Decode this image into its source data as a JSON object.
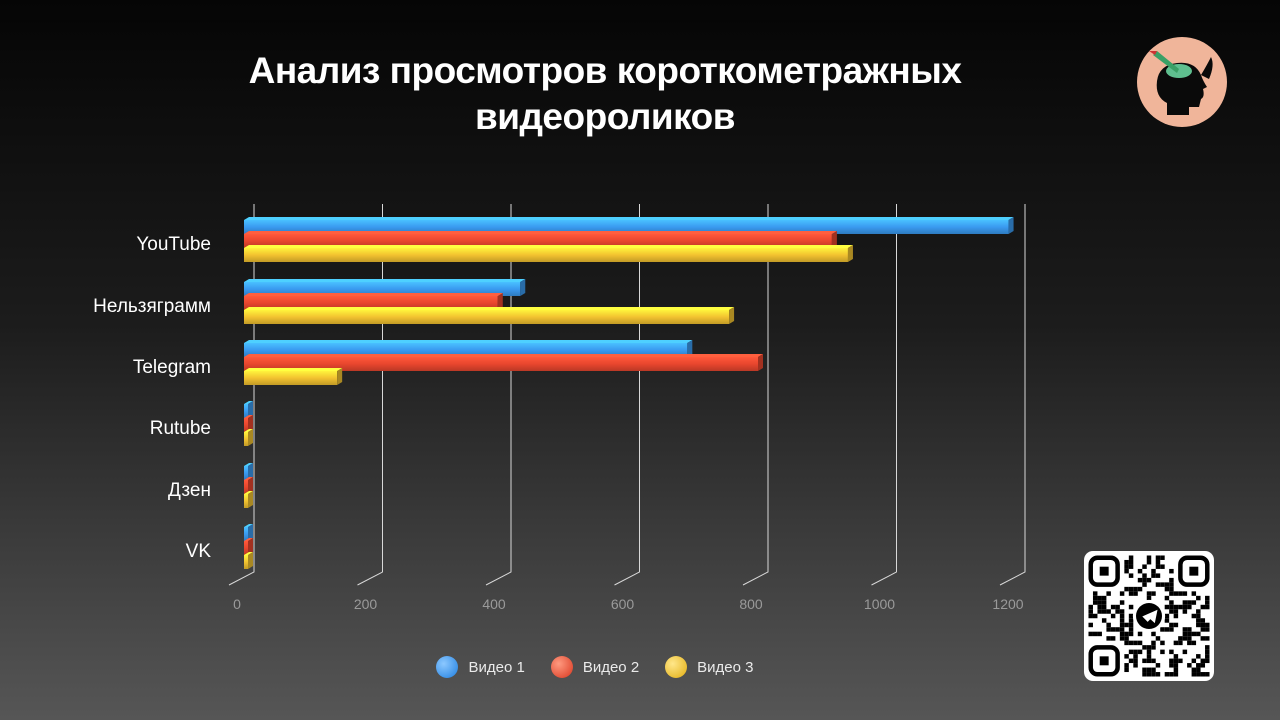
{
  "title_line1": "Анализ просмотров короткометражных",
  "title_line2": "видеороликов",
  "logo_icon": "head-with-pen-logo-icon",
  "qr_icon": "telegram-qr-code-icon",
  "colors": {
    "series1": "#3a9af0",
    "series2": "#e8462e",
    "series3": "#f2c230",
    "grid": "#d8d8d8",
    "tick": "#9a9a9a"
  },
  "chart_data": {
    "type": "bar",
    "orientation": "horizontal",
    "title": "Анализ просмотров короткометражных видеороликов",
    "categories": [
      "YouTube",
      "Нельзяграмм",
      "Telegram",
      "Rutube",
      "Дзен",
      "VK"
    ],
    "series": [
      {
        "name": "Видео 1",
        "values": [
          1190,
          430,
          690,
          5,
          2,
          5
        ]
      },
      {
        "name": "Видео 2",
        "values": [
          915,
          395,
          800,
          5,
          2,
          5
        ]
      },
      {
        "name": "Видео 3",
        "values": [
          940,
          755,
          145,
          5,
          2,
          5
        ]
      }
    ],
    "xticks": [
      "0",
      "200",
      "400",
      "600",
      "800",
      "1000",
      "1200"
    ],
    "xlim": [
      0,
      1200
    ],
    "grid": true,
    "legend": "bottom-center",
    "style": "3d"
  }
}
